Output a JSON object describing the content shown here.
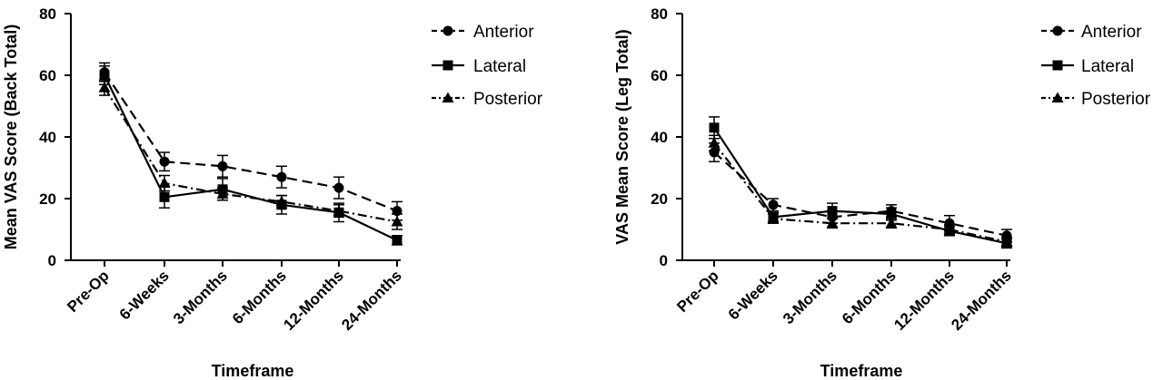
{
  "chart_data": [
    {
      "type": "line",
      "xlabel": "Timeframe",
      "ylabel": "Mean VAS Score (Back Total)",
      "categories": [
        "Pre-Op",
        "6-Weeks",
        "3-Months",
        "6-Months",
        "12-Months",
        "24-Months"
      ],
      "ylim": [
        0,
        80
      ],
      "yticks": [
        "0",
        "20",
        "40",
        "60",
        "80"
      ],
      "grid": false,
      "legend_position": "top-right",
      "series": [
        {
          "name": "Anterior",
          "marker": "circle",
          "dash": "long-dash",
          "values": [
            61,
            32,
            30.5,
            27,
            23.5,
            16
          ],
          "errors": [
            3,
            3,
            3.5,
            3.5,
            3.5,
            3
          ]
        },
        {
          "name": "Lateral",
          "marker": "square",
          "dash": "solid",
          "values": [
            60,
            20.5,
            23,
            18,
            15.5,
            6.5
          ],
          "errors": [
            3,
            3.5,
            3.5,
            3,
            3,
            1.5
          ]
        },
        {
          "name": "Posterior",
          "marker": "triangle",
          "dash": "dash-dot",
          "values": [
            56,
            25,
            21.5,
            19,
            16,
            12.5
          ],
          "errors": [
            2.5,
            2.5,
            2,
            2,
            2,
            2.5
          ]
        }
      ]
    },
    {
      "type": "line",
      "xlabel": "Timeframe",
      "ylabel": "VAS Mean Score (Leg Total)",
      "categories": [
        "Pre-Op",
        "6-Weeks",
        "3-Months",
        "6-Months",
        "12-Months",
        "24-Months"
      ],
      "ylim": [
        0,
        80
      ],
      "yticks": [
        "0",
        "20",
        "40",
        "60",
        "80"
      ],
      "grid": false,
      "legend_position": "top-right",
      "series": [
        {
          "name": "Anterior",
          "marker": "circle",
          "dash": "long-dash",
          "values": [
            35,
            18,
            14,
            16,
            12,
            8
          ],
          "errors": [
            3,
            2,
            2,
            2,
            2.5,
            2
          ]
        },
        {
          "name": "Lateral",
          "marker": "square",
          "dash": "solid",
          "values": [
            43,
            14,
            16,
            15,
            9.5,
            5.5
          ],
          "errors": [
            3.5,
            1.5,
            2.5,
            2,
            1.5,
            1.5
          ]
        },
        {
          "name": "Posterior",
          "marker": "triangle",
          "dash": "dash-dot",
          "values": [
            38,
            13.5,
            12,
            12,
            10,
            6
          ],
          "errors": [
            2.5,
            1.5,
            1.5,
            1.5,
            1.5,
            1.5
          ]
        }
      ]
    }
  ]
}
